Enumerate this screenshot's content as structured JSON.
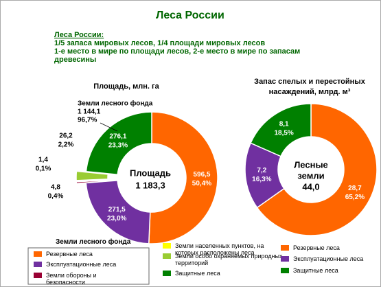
{
  "title": "Леса России",
  "intro": [
    "Леса России:",
    "1/5 запаса мировых лесов, 1/4  площади мировых лесов",
    "1-е  место в мире по площади лесов, 2-е место в мире по запасам",
    "древесины"
  ],
  "chart_data": [
    {
      "type": "donut",
      "title": [
        "Площадь, млн. га"
      ],
      "categories": [
        "Резервные леса",
        "Эксплуатационные леса",
        "Земли обороны и безопасности",
        "Земли населенных пунктов, на которых расположены леса",
        "Земли особо охраняемых природных территорий",
        "Защитные леса"
      ],
      "values": [
        596.5,
        271.5,
        4.8,
        1.4,
        26.2,
        276.1
      ],
      "value_labels": [
        "596,5",
        "271,5",
        "4,8",
        "1,4",
        "26,2",
        "276,1"
      ],
      "percent_labels": [
        "50,4%",
        "23,0%",
        "0,4%",
        "0,1%",
        "2,2%",
        "23,3%"
      ],
      "colors": [
        "#ff6600",
        "#7030a0",
        "#990033",
        "#ffff00",
        "#99cc33",
        "#008000"
      ],
      "center_text": [
        "Площадь",
        "1 183,3"
      ],
      "annotation": [
        "Земли лесного фонда",
        "1 144,1",
        "96,7%"
      ],
      "legend_title": "Земли лесного фонда"
    },
    {
      "type": "donut",
      "title": [
        "Запас спелых и перестойных",
        "насаждений, млрд. м³"
      ],
      "categories": [
        "Резервные леса",
        "Эксплуатационные леса",
        "Защитные леса"
      ],
      "values": [
        28.7,
        7.2,
        8.1
      ],
      "value_labels": [
        "28,7",
        "7,2",
        "8,1"
      ],
      "percent_labels": [
        "65,2%",
        "16,3%",
        "18,5%"
      ],
      "colors": [
        "#ff6600",
        "#7030a0",
        "#008000"
      ],
      "center_text": [
        "Лесные",
        "земли",
        "44,0"
      ]
    }
  ]
}
